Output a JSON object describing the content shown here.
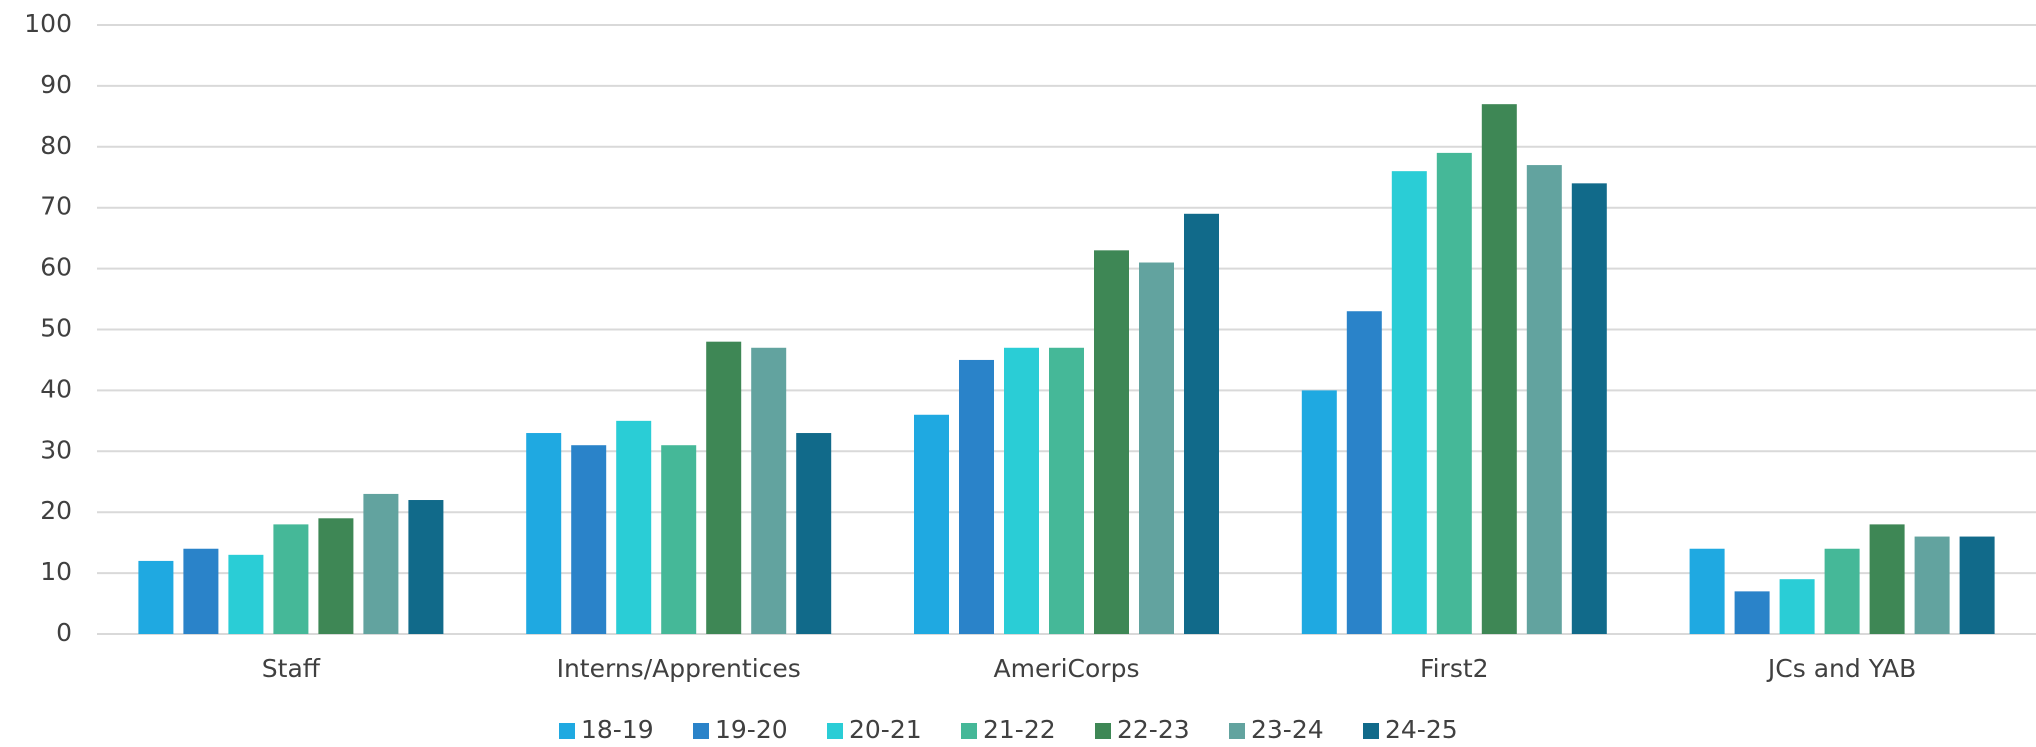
{
  "chart_data": {
    "type": "bar",
    "categories": [
      "Staff",
      "Interns/Apprentices",
      "AmeriCorps",
      "First2",
      "JCs and YAB"
    ],
    "series": [
      {
        "name": "18-19",
        "color": "#1fa9e1",
        "values": [
          12,
          33,
          36,
          40,
          14
        ]
      },
      {
        "name": "19-20",
        "color": "#2a83c9",
        "values": [
          14,
          31,
          45,
          53,
          7
        ]
      },
      {
        "name": "20-21",
        "color": "#2acdd6",
        "values": [
          13,
          35,
          47,
          76,
          9
        ]
      },
      {
        "name": "21-22",
        "color": "#45b898",
        "values": [
          18,
          31,
          47,
          79,
          14
        ]
      },
      {
        "name": "22-23",
        "color": "#3e8755",
        "values": [
          19,
          48,
          63,
          87,
          18
        ]
      },
      {
        "name": "23-24",
        "color": "#62a39f",
        "values": [
          23,
          47,
          61,
          77,
          16
        ]
      },
      {
        "name": "24-25",
        "color": "#116a8a",
        "values": [
          22,
          33,
          69,
          74,
          16
        ]
      }
    ],
    "ylim": [
      0,
      100
    ],
    "yticks": [
      0,
      10,
      20,
      30,
      40,
      50,
      60,
      70,
      80,
      90,
      100
    ],
    "grid": true,
    "legend": "bottom"
  }
}
